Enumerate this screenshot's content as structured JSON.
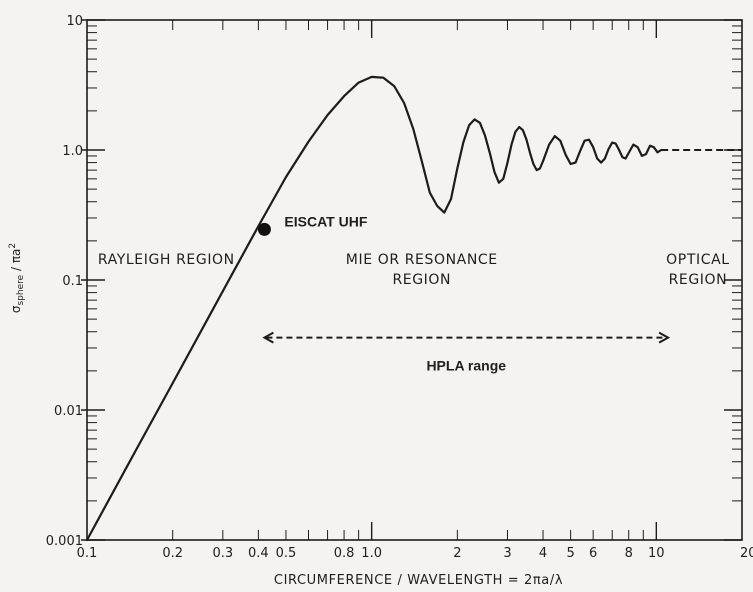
{
  "chart_data": {
    "type": "line",
    "xlabel": "CIRCUMFERENCE / WAVELENGTH = 2πa/λ",
    "ylabel": "σ sphere / πa²",
    "ylabel_parts": {
      "sigma": "σ",
      "sub": "sphere",
      "rest": " / πa",
      "sup": "2"
    },
    "xscale": "log",
    "yscale": "log",
    "xlim": [
      0.1,
      20
    ],
    "ylim": [
      0.001,
      10
    ],
    "x_ticks": [
      {
        "value": 0.1,
        "label": "0.1"
      },
      {
        "value": 0.2,
        "label": "0.2"
      },
      {
        "value": 0.3,
        "label": "0.3"
      },
      {
        "value": 0.4,
        "label": "0.4"
      },
      {
        "value": 0.5,
        "label": "0.5"
      },
      {
        "value": 0.8,
        "label": "0.8"
      },
      {
        "value": 1.0,
        "label": "1.0"
      },
      {
        "value": 2,
        "label": "2"
      },
      {
        "value": 3,
        "label": "3"
      },
      {
        "value": 4,
        "label": "4"
      },
      {
        "value": 5,
        "label": "5"
      },
      {
        "value": 6,
        "label": "6"
      },
      {
        "value": 8,
        "label": "8"
      },
      {
        "value": 10,
        "label": "10"
      },
      {
        "value": 20,
        "label": "20"
      }
    ],
    "y_ticks": [
      {
        "value": 0.001,
        "label": "0.001"
      },
      {
        "value": 0.01,
        "label": "0.01"
      },
      {
        "value": 0.1,
        "label": "0.1"
      },
      {
        "value": 1.0,
        "label": "1.0"
      },
      {
        "value": 10,
        "label": "10"
      }
    ],
    "series": [
      {
        "x": [
          0.1,
          0.15,
          0.2,
          0.3,
          0.4,
          0.5,
          0.6,
          0.7,
          0.8,
          0.9,
          1.0,
          1.1,
          1.2,
          1.3,
          1.4,
          1.5,
          1.6,
          1.7,
          1.8,
          1.9,
          2.0,
          2.1,
          2.2,
          2.3,
          2.4,
          2.5,
          2.6,
          2.7,
          2.8,
          2.9,
          3.0,
          3.1,
          3.2,
          3.3,
          3.4,
          3.5,
          3.6,
          3.7,
          3.8,
          3.9,
          4.0,
          4.2,
          4.4,
          4.6,
          4.8,
          5.0,
          5.2,
          5.4,
          5.6,
          5.8,
          6.0,
          6.2,
          6.4,
          6.6,
          6.8,
          7.0,
          7.2,
          7.4,
          7.6,
          7.8,
          8.0,
          8.3,
          8.6,
          8.9,
          9.2,
          9.5,
          9.8,
          10.1,
          10.4
        ],
        "y": [
          0.001,
          0.0051,
          0.0161,
          0.082,
          0.26,
          0.62,
          1.16,
          1.86,
          2.6,
          3.3,
          3.65,
          3.6,
          3.1,
          2.3,
          1.45,
          0.82,
          0.47,
          0.37,
          0.33,
          0.42,
          0.72,
          1.15,
          1.55,
          1.72,
          1.62,
          1.3,
          0.95,
          0.68,
          0.56,
          0.6,
          0.8,
          1.1,
          1.38,
          1.5,
          1.42,
          1.2,
          0.95,
          0.78,
          0.7,
          0.72,
          0.82,
          1.1,
          1.28,
          1.18,
          0.92,
          0.78,
          0.8,
          0.98,
          1.18,
          1.2,
          1.05,
          0.86,
          0.8,
          0.86,
          1.02,
          1.14,
          1.12,
          1.0,
          0.88,
          0.86,
          0.95,
          1.1,
          1.05,
          0.9,
          0.93,
          1.08,
          1.05,
          0.96,
          1.0
        ]
      }
    ],
    "optical_limit": {
      "from_x": 10.4,
      "to_x": 20,
      "y": 1.0,
      "style": "dashed"
    },
    "marker": {
      "x": 0.42,
      "y": 0.245,
      "label": "EISCAT UHF"
    },
    "regions": [
      {
        "lines": [
          "RAYLEIGH  REGION"
        ],
        "x": 0.19
      },
      {
        "lines": [
          "MIE  OR  RESONANCE",
          "REGION"
        ],
        "x": 1.5
      },
      {
        "lines": [
          "OPTICAL",
          "REGION"
        ],
        "x": 14
      }
    ],
    "range_arrow": {
      "x_from": 0.42,
      "x_to": 11,
      "y": 0.036,
      "label": "HPLA range"
    }
  }
}
